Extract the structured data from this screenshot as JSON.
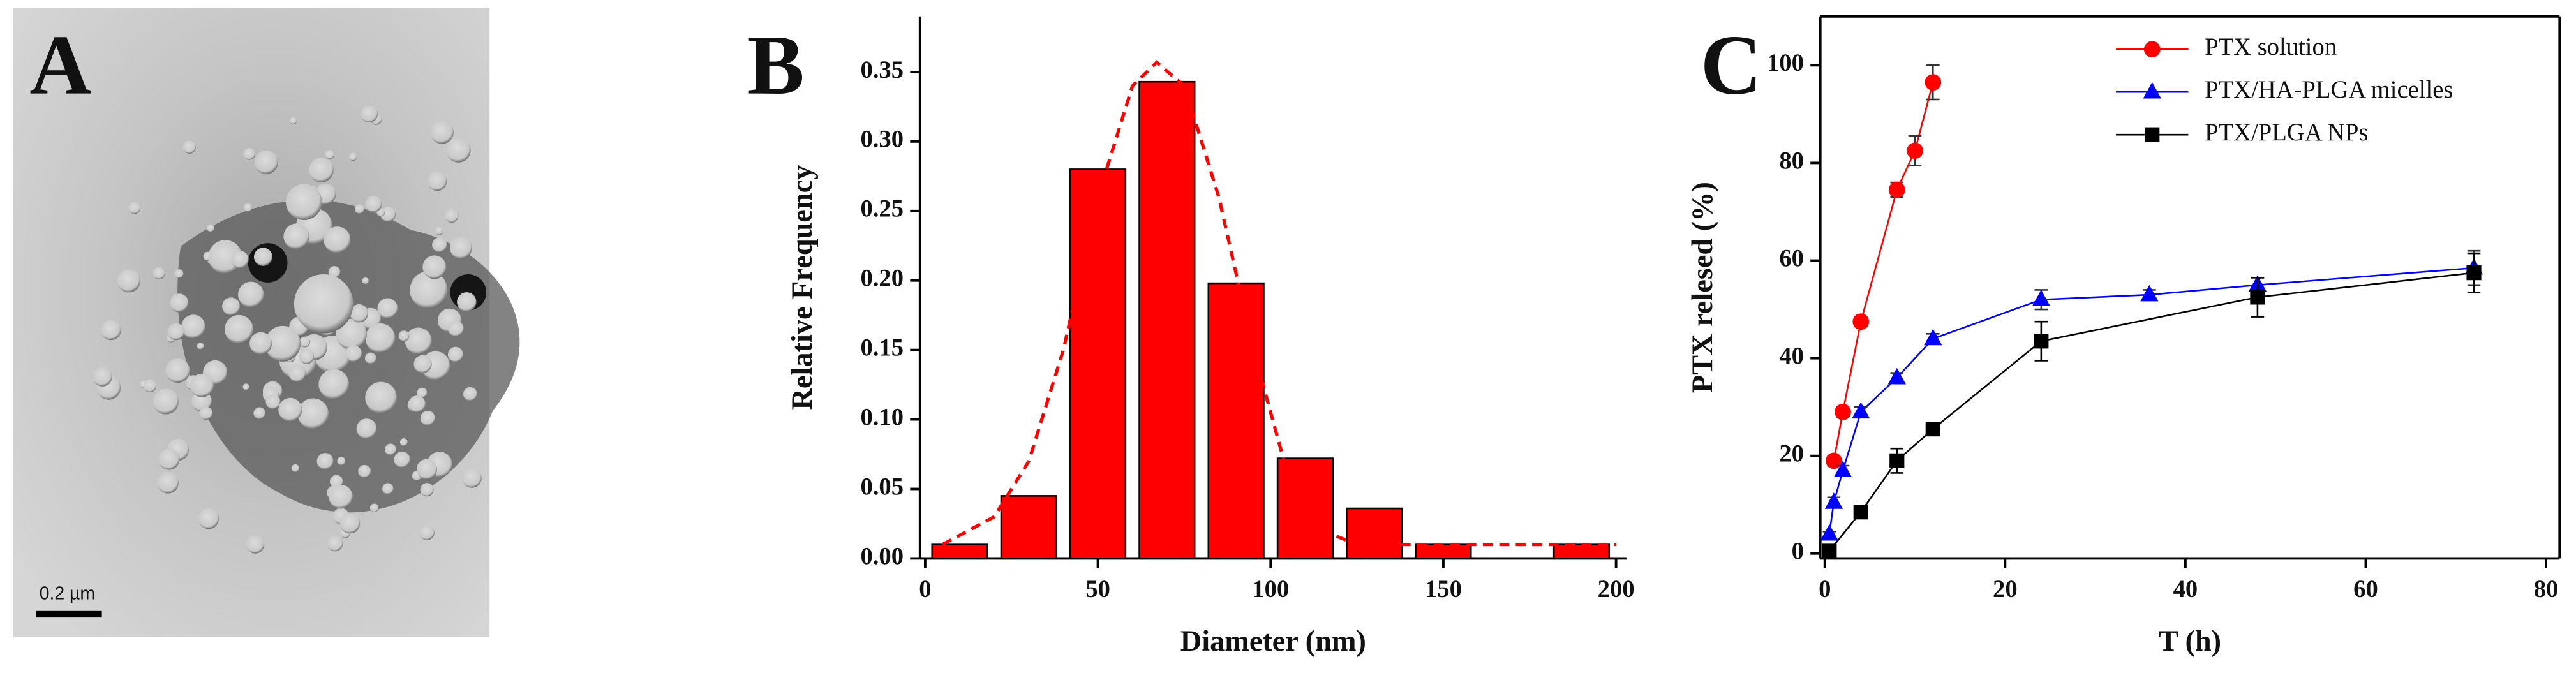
{
  "panel_labels": [
    "A",
    "B",
    "C"
  ],
  "image": {
    "scale_bar": "0.2 µm"
  },
  "chart_data": [
    {
      "type": "bar",
      "x_label": "Diameter (nm)",
      "y_label": "Relative Frequency",
      "x": [
        10,
        30,
        50,
        70,
        90,
        110,
        130,
        150,
        190
      ],
      "values": [
        0.01,
        0.045,
        0.28,
        0.343,
        0.198,
        0.072,
        0.036,
        0.01,
        0.01
      ],
      "color": "#ff0000",
      "fit": {
        "x": [
          5,
          20,
          30,
          40,
          50,
          60,
          67,
          75,
          85,
          95,
          105,
          115,
          125,
          200
        ],
        "y": [
          0.01,
          0.03,
          0.07,
          0.15,
          0.26,
          0.34,
          0.357,
          0.34,
          0.26,
          0.15,
          0.06,
          0.02,
          0.01,
          0.01
        ],
        "color": "#ff0000",
        "dashed": true
      },
      "xlim": [
        -1.5,
        203
      ],
      "ylim": [
        0,
        0.39
      ],
      "xticks": [
        0,
        50,
        100,
        150,
        200
      ],
      "yticks": [
        {
          "value": 0,
          "label": "0.00"
        },
        {
          "value": 0.05,
          "label": "0.05"
        },
        {
          "value": 0.1,
          "label": "0.10"
        },
        {
          "value": 0.15,
          "label": "0.15"
        },
        {
          "value": 0.2,
          "label": "0.20"
        },
        {
          "value": 0.25,
          "label": "0.25"
        },
        {
          "value": 0.3,
          "label": "0.30"
        },
        {
          "value": 0.35,
          "label": "0.35"
        }
      ],
      "frame": false
    },
    {
      "type": "line",
      "x_label": "T (h)",
      "y_label": "PTX relesed (%)",
      "series": [
        {
          "name": "PTX solution",
          "color": "#ff0000",
          "marker": "circle",
          "x": [
            1,
            2,
            4,
            8,
            10,
            12
          ],
          "values": [
            19,
            29,
            47.5,
            74.5,
            82.5,
            96.5
          ],
          "errors": [
            1,
            1,
            1,
            1.5,
            3,
            3.5
          ]
        },
        {
          "name": "PTX/HA-PLGA micelles",
          "color": "#0000ff",
          "marker": "triangle",
          "x": [
            0.5,
            1,
            2,
            4,
            8,
            12,
            24,
            36,
            48,
            72
          ],
          "values": [
            4,
            10.5,
            17,
            29,
            36,
            44,
            52,
            53,
            55,
            58.5
          ],
          "errors": [
            0.5,
            1,
            1,
            1,
            1,
            1,
            2,
            1,
            1.5,
            3.5
          ]
        },
        {
          "name": "PTX/PLGA NPs",
          "color": "#000000",
          "marker": "square",
          "x": [
            0.5,
            4,
            8,
            12,
            24,
            48,
            72
          ],
          "values": [
            0.5,
            8.5,
            19,
            25.5,
            43.5,
            52.5,
            57.5
          ],
          "errors": [
            0.5,
            1,
            2.5,
            1,
            4,
            4,
            4
          ]
        }
      ],
      "xlim": [
        -0.5,
        81.5
      ],
      "ylim": [
        -1,
        110
      ],
      "xticks": [
        0,
        20,
        40,
        60,
        80
      ],
      "yticks": [
        0,
        20,
        40,
        60,
        80,
        100
      ],
      "frame": true,
      "legend": "upper right"
    }
  ]
}
